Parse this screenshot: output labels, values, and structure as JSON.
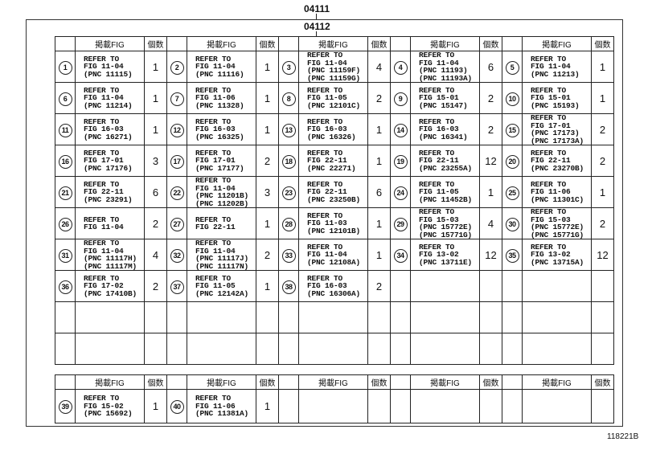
{
  "top_code": "04111",
  "box_code": "04112",
  "figure_id": "118221B",
  "headers": {
    "fig": "掲載FIG",
    "qty": "個数"
  },
  "main_table": [
    {
      "num": "1",
      "lines": [
        "REFER TO",
        "FIG 11-04",
        "(PNC 11115)"
      ],
      "qty": "1"
    },
    {
      "num": "2",
      "lines": [
        "REFER TO",
        "FIG 11-04",
        "(PNC 11116)"
      ],
      "qty": "1"
    },
    {
      "num": "3",
      "lines": [
        "REFER TO",
        "FIG 11-04",
        "(PNC 11159F)",
        "(PNC 11159G)"
      ],
      "qty": "4"
    },
    {
      "num": "4",
      "lines": [
        "REFER TO",
        "FIG 11-04",
        "(PNC 11193)",
        "(PNC 11193A)"
      ],
      "qty": "6"
    },
    {
      "num": "5",
      "lines": [
        "REFER TO",
        "FIG 11-04",
        "(PNC 11213)"
      ],
      "qty": "1"
    },
    {
      "num": "6",
      "lines": [
        "REFER TO",
        "FIG 11-04",
        "(PNC 11214)"
      ],
      "qty": "1"
    },
    {
      "num": "7",
      "lines": [
        "REFER TO",
        "FIG 11-06",
        "(PNC 11328)"
      ],
      "qty": "1"
    },
    {
      "num": "8",
      "lines": [
        "REFER TO",
        "FIG 11-05",
        "(PNC 12101C)"
      ],
      "qty": "2"
    },
    {
      "num": "9",
      "lines": [
        "REFER TO",
        "FIG 15-01",
        "(PNC 15147)"
      ],
      "qty": "2"
    },
    {
      "num": "10",
      "lines": [
        "REFER TO",
        "FIG 15-01",
        "(PNC 15193)"
      ],
      "qty": "1"
    },
    {
      "num": "11",
      "lines": [
        "REFER TO",
        "FIG 16-03",
        "(PNC 16271)"
      ],
      "qty": "1"
    },
    {
      "num": "12",
      "lines": [
        "REFER TO",
        "FIG 16-03",
        "(PNC 16325)"
      ],
      "qty": "1"
    },
    {
      "num": "13",
      "lines": [
        "REFER TO",
        "FIG 16-03",
        "(PNC 16326)"
      ],
      "qty": "1"
    },
    {
      "num": "14",
      "lines": [
        "REFER TO",
        "FIG 16-03",
        "(PNC 16341)"
      ],
      "qty": "2"
    },
    {
      "num": "15",
      "lines": [
        "REFER TO",
        "FIG 17-01",
        "(PNC 17173)",
        "(PNC 17173A)"
      ],
      "qty": "2"
    },
    {
      "num": "16",
      "lines": [
        "REFER TO",
        "FIG 17-01",
        "(PNC 17176)"
      ],
      "qty": "3"
    },
    {
      "num": "17",
      "lines": [
        "REFER TO",
        "FIG 17-01",
        "(PNC 17177)"
      ],
      "qty": "2"
    },
    {
      "num": "18",
      "lines": [
        "REFER TO",
        "FIG 22-11",
        "(PNC 22271)"
      ],
      "qty": "1"
    },
    {
      "num": "19",
      "lines": [
        "REFER TO",
        "FIG 22-11",
        "(PNC 23255A)"
      ],
      "qty": "12"
    },
    {
      "num": "20",
      "lines": [
        "REFER TO",
        "FIG 22-11",
        "(PNC 23270B)"
      ],
      "qty": "2"
    },
    {
      "num": "21",
      "lines": [
        "REFER TO",
        "FIG 22-11",
        "(PNC 23291)"
      ],
      "qty": "6"
    },
    {
      "num": "22",
      "lines": [
        "REFER TO",
        "FIG 11-04",
        "(PNC 11201B)",
        "(PNC 11202B)"
      ],
      "qty": "3"
    },
    {
      "num": "23",
      "lines": [
        "REFER TO",
        "FIG 22-11",
        "(PNC 23250B)"
      ],
      "qty": "6"
    },
    {
      "num": "24",
      "lines": [
        "REFER TO",
        "FIG 11-05",
        "(PNC 11452B)"
      ],
      "qty": "1"
    },
    {
      "num": "25",
      "lines": [
        "REFER TO",
        "FIG 11-06",
        "(PNC 11301C)"
      ],
      "qty": "1"
    },
    {
      "num": "26",
      "lines": [
        "REFER TO",
        "FIG 11-04"
      ],
      "qty": "2"
    },
    {
      "num": "27",
      "lines": [
        "REFER TO",
        "FIG 22-11"
      ],
      "qty": "1"
    },
    {
      "num": "28",
      "lines": [
        "REFER TO",
        "FIG 11-03",
        "(PNC 12101B)"
      ],
      "qty": "1"
    },
    {
      "num": "29",
      "lines": [
        "REFER TO",
        "FIG 15-03",
        "(PNC 15772E)",
        "(PNC 15771G)"
      ],
      "qty": "4"
    },
    {
      "num": "30",
      "lines": [
        "REFER TO",
        "FIG 15-03",
        "(PNC 15772E)",
        "(PNC 15771G)"
      ],
      "qty": "2"
    },
    {
      "num": "31",
      "lines": [
        "REFER TO",
        "FIG 11-04",
        "(PNC 11117H)",
        "(PNC 11117M)"
      ],
      "qty": "4"
    },
    {
      "num": "32",
      "lines": [
        "REFER TO",
        "FIG 11-04",
        "(PNC 11117J)",
        "(PNC 11117N)"
      ],
      "qty": "2"
    },
    {
      "num": "33",
      "lines": [
        "REFER TO",
        "FIG 11-04",
        "(PNC 12108A)"
      ],
      "qty": "1"
    },
    {
      "num": "34",
      "lines": [
        "REFER TO",
        "FIG 13-02",
        "(PNC 13711E)"
      ],
      "qty": "12"
    },
    {
      "num": "35",
      "lines": [
        "REFER TO",
        "FIG 13-02",
        "(PNC 13715A)"
      ],
      "qty": "12"
    },
    {
      "num": "36",
      "lines": [
        "REFER TO",
        "FIG 17-02",
        "(PNC 17410B)"
      ],
      "qty": "2"
    },
    {
      "num": "37",
      "lines": [
        "REFER TO",
        "FIG 11-05",
        "(PNC 12142A)"
      ],
      "qty": "1"
    },
    {
      "num": "38",
      "lines": [
        "REFER TO",
        "FIG 16-03",
        "(PNC 16306A)"
      ],
      "qty": "2"
    }
  ],
  "bottom_table": [
    {
      "num": "39",
      "lines": [
        "REFER TO",
        "FIG 15-02",
        "(PNC 15692)"
      ],
      "qty": "1"
    },
    {
      "num": "40",
      "lines": [
        "REFER TO",
        "FIG 11-06",
        "(PNC 11381A)"
      ],
      "qty": "1"
    }
  ]
}
